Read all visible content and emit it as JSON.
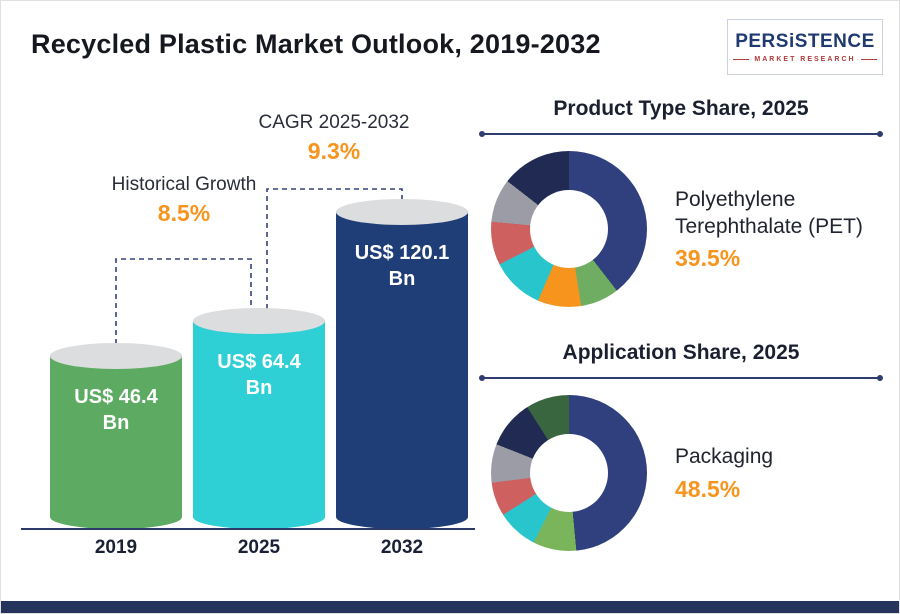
{
  "header": {
    "title": "Recycled Plastic Market Outlook, 2019-2032",
    "logo": {
      "brand": "PERSiSTENCE",
      "tagline": "MARKET RESEARCH"
    }
  },
  "colors": {
    "accent_orange": "#f7941d",
    "navy": "#2c3a6b",
    "footer_bar": "#24345c"
  },
  "chart_data": [
    {
      "type": "bar",
      "title": "Recycled Plastic Market Outlook, 2019-2032",
      "categories": [
        "2019",
        "2025",
        "2032"
      ],
      "values": [
        46.4,
        64.4,
        120.1
      ],
      "unit": "US$ Bn",
      "value_labels": [
        "US$ 46.4 Bn",
        "US$ 64.4 Bn",
        "US$ 120.1 Bn"
      ],
      "colors": [
        "#5dab62",
        "#2fcfd6",
        "#1f3d77"
      ],
      "annotations": [
        {
          "label": "Historical Growth",
          "value": "8.5%",
          "from": "2019",
          "to": "2025"
        },
        {
          "label": "CAGR 2025-2032",
          "value": "9.3%",
          "from": "2025",
          "to": "2032"
        }
      ]
    },
    {
      "type": "pie",
      "title": "Product Type Share, 2025",
      "highlight": {
        "label": "Polyethylene Terephthalate (PET)",
        "value": "39.5%"
      },
      "legend_position": "none",
      "slices": [
        {
          "label": "Polyethylene Terephthalate (PET)",
          "value": 39.5,
          "color": "#303f7d"
        },
        {
          "label": "",
          "value": 8,
          "color": "#6fae62"
        },
        {
          "label": "",
          "value": 9,
          "color": "#f7941e"
        },
        {
          "label": "",
          "value": 11,
          "color": "#29c5cd"
        },
        {
          "label": "",
          "value": 9,
          "color": "#cf6060"
        },
        {
          "label": "",
          "value": 9,
          "color": "#9c9ca6"
        },
        {
          "label": "",
          "value": 14.5,
          "color": "#212a52"
        }
      ]
    },
    {
      "type": "pie",
      "title": "Application Share, 2025",
      "highlight": {
        "label": "Packaging",
        "value": "48.5%"
      },
      "legend_position": "none",
      "slices": [
        {
          "label": "Packaging",
          "value": 48.5,
          "color": "#303f7d"
        },
        {
          "label": "",
          "value": 9,
          "color": "#7ab55c"
        },
        {
          "label": "",
          "value": 8.5,
          "color": "#29c5cd"
        },
        {
          "label": "",
          "value": 7,
          "color": "#cf6060"
        },
        {
          "label": "",
          "value": 8,
          "color": "#9c9ca6"
        },
        {
          "label": "",
          "value": 10,
          "color": "#212a52"
        },
        {
          "label": "",
          "value": 9,
          "color": "#39663f"
        }
      ]
    }
  ]
}
